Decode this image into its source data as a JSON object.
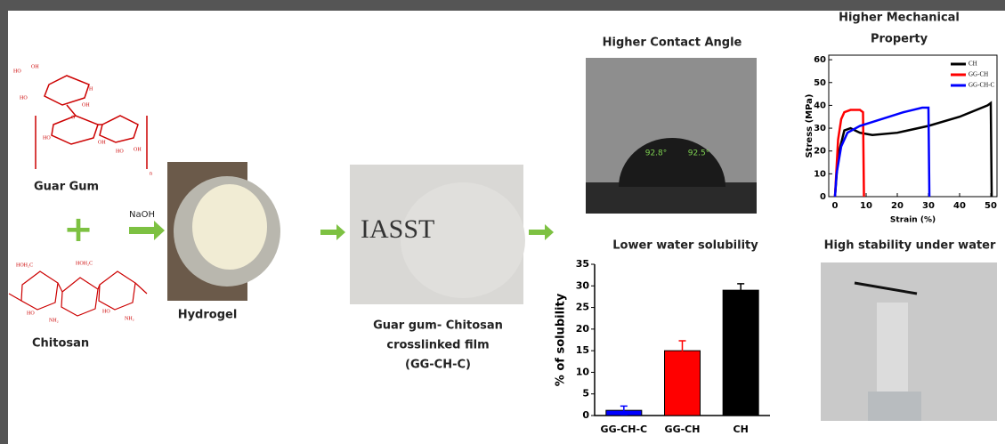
{
  "guar_gum": {
    "label": "Guar Gum",
    "structure_labels": [
      "HO",
      "OH",
      "H",
      "HO",
      "OH",
      "O",
      "HO",
      "OH",
      "HO",
      "OH",
      "n"
    ]
  },
  "plus": "+",
  "chitosan": {
    "label": "Chitosan",
    "structure_labels": [
      "HOH₂C",
      "HOH₂C",
      "HO",
      "NH₂",
      "HO",
      "NH₂"
    ]
  },
  "reagent": "NaOH",
  "hydrogel": "Hydrogel",
  "film": {
    "stamp": "IASST",
    "label": [
      "Guar gum- Chitosan",
      "crosslinked film",
      "(GG-CH-C)"
    ]
  },
  "contact_angle": {
    "title": "Higher Contact Angle",
    "angles": [
      "92.8°",
      "92.5°"
    ]
  },
  "stability": {
    "title": "High stability under water"
  },
  "chart_data": [
    {
      "type": "line",
      "title": [
        "Higher Mechanical",
        "Property"
      ],
      "x_label": "Strain (%)",
      "y_label": "Stress (MPa)",
      "xlim": [
        -2,
        52
      ],
      "ylim": [
        0,
        62
      ],
      "xticks": [
        0,
        10,
        20,
        30,
        40,
        50
      ],
      "yticks": [
        0,
        10,
        20,
        30,
        40,
        50,
        60
      ],
      "series": [
        {
          "name": "CH",
          "color": "#000000",
          "x": [
            0,
            1,
            3,
            5,
            8,
            12,
            20,
            30,
            40,
            49,
            50,
            50.3
          ],
          "values": [
            0,
            18,
            29,
            30,
            28,
            27,
            28,
            31,
            35,
            40,
            41,
            0
          ]
        },
        {
          "name": "GG-CH",
          "color": "#ff0000",
          "x": [
            0,
            1,
            2,
            3,
            5,
            8,
            9,
            9.3
          ],
          "values": [
            0,
            25,
            34,
            37,
            38,
            38,
            37,
            0
          ]
        },
        {
          "name": "GG-CH-C",
          "color": "#0000ff",
          "x": [
            0,
            0.5,
            2,
            4,
            8,
            15,
            22,
            28,
            30,
            30.3
          ],
          "values": [
            0,
            10,
            22,
            28,
            31,
            34,
            37,
            39,
            39,
            0
          ]
        }
      ]
    },
    {
      "type": "bar",
      "title": "Lower water solubility",
      "y_label": "% of solubility",
      "categories": [
        "GG-CH-C",
        "GG-CH",
        "CH"
      ],
      "values": [
        1.2,
        15,
        29
      ],
      "errors": [
        1,
        2.3,
        1.5
      ],
      "colors": [
        "#0000ff",
        "#ff0000",
        "#000000"
      ],
      "ylim": [
        0,
        35
      ],
      "yticks": [
        0,
        5,
        10,
        15,
        20,
        25,
        30,
        35
      ]
    }
  ]
}
